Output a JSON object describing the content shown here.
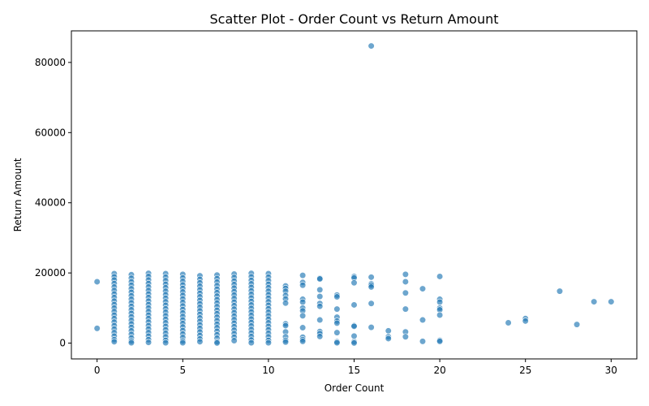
{
  "chart_data": {
    "type": "scatter",
    "title": "Scatter Plot - Order Count vs Return Amount",
    "xlabel": "Order Count",
    "ylabel": "Return Amount",
    "xlim": [
      -1.5,
      31.5
    ],
    "ylim": [
      -4500,
      89000
    ],
    "xticks": [
      0,
      5,
      10,
      15,
      20,
      25,
      30
    ],
    "yticks": [
      0,
      20000,
      40000,
      60000,
      80000
    ],
    "grid": false,
    "legend": "none",
    "marker_color": "#1f77b4",
    "series": [
      {
        "points": [
          [
            0,
            17500
          ],
          [
            0,
            4200
          ],
          [
            1,
            19800
          ],
          [
            1,
            18900
          ],
          [
            1,
            18000
          ],
          [
            1,
            17000
          ],
          [
            1,
            16000
          ],
          [
            1,
            15000
          ],
          [
            1,
            14000
          ],
          [
            1,
            13000
          ],
          [
            1,
            12000
          ],
          [
            1,
            11000
          ],
          [
            1,
            10000
          ],
          [
            1,
            9000
          ],
          [
            1,
            8000
          ],
          [
            1,
            7000
          ],
          [
            1,
            6000
          ],
          [
            1,
            5000
          ],
          [
            1,
            4000
          ],
          [
            1,
            3000
          ],
          [
            1,
            2000
          ],
          [
            1,
            1000
          ],
          [
            1,
            400
          ],
          [
            2,
            19500
          ],
          [
            2,
            18500
          ],
          [
            2,
            17500
          ],
          [
            2,
            16500
          ],
          [
            2,
            15500
          ],
          [
            2,
            14500
          ],
          [
            2,
            13500
          ],
          [
            2,
            12500
          ],
          [
            2,
            11500
          ],
          [
            2,
            10500
          ],
          [
            2,
            9500
          ],
          [
            2,
            8500
          ],
          [
            2,
            7500
          ],
          [
            2,
            6500
          ],
          [
            2,
            5500
          ],
          [
            2,
            4500
          ],
          [
            2,
            3500
          ],
          [
            2,
            2500
          ],
          [
            2,
            1500
          ],
          [
            2,
            600
          ],
          [
            2,
            100
          ],
          [
            3,
            19900
          ],
          [
            3,
            19000
          ],
          [
            3,
            18000
          ],
          [
            3,
            17000
          ],
          [
            3,
            16000
          ],
          [
            3,
            15000
          ],
          [
            3,
            14000
          ],
          [
            3,
            13000
          ],
          [
            3,
            12000
          ],
          [
            3,
            11000
          ],
          [
            3,
            10000
          ],
          [
            3,
            9000
          ],
          [
            3,
            8000
          ],
          [
            3,
            7000
          ],
          [
            3,
            6000
          ],
          [
            3,
            5000
          ],
          [
            3,
            4000
          ],
          [
            3,
            3000
          ],
          [
            3,
            2000
          ],
          [
            3,
            1000
          ],
          [
            3,
            200
          ],
          [
            4,
            19800
          ],
          [
            4,
            18800
          ],
          [
            4,
            17800
          ],
          [
            4,
            16800
          ],
          [
            4,
            15800
          ],
          [
            4,
            14800
          ],
          [
            4,
            13800
          ],
          [
            4,
            12800
          ],
          [
            4,
            11800
          ],
          [
            4,
            10800
          ],
          [
            4,
            9800
          ],
          [
            4,
            8800
          ],
          [
            4,
            7800
          ],
          [
            4,
            6800
          ],
          [
            4,
            5800
          ],
          [
            4,
            4800
          ],
          [
            4,
            3800
          ],
          [
            4,
            2800
          ],
          [
            4,
            1800
          ],
          [
            4,
            800
          ],
          [
            4,
            100
          ],
          [
            5,
            19600
          ],
          [
            5,
            18600
          ],
          [
            5,
            17600
          ],
          [
            5,
            16600
          ],
          [
            5,
            15600
          ],
          [
            5,
            14600
          ],
          [
            5,
            13600
          ],
          [
            5,
            12600
          ],
          [
            5,
            11600
          ],
          [
            5,
            10600
          ],
          [
            5,
            9600
          ],
          [
            5,
            8600
          ],
          [
            5,
            7600
          ],
          [
            5,
            6600
          ],
          [
            5,
            5600
          ],
          [
            5,
            4600
          ],
          [
            5,
            3600
          ],
          [
            5,
            2600
          ],
          [
            5,
            1600
          ],
          [
            5,
            600
          ],
          [
            5,
            100
          ],
          [
            6,
            19200
          ],
          [
            6,
            18200
          ],
          [
            6,
            17200
          ],
          [
            6,
            16200
          ],
          [
            6,
            15200
          ],
          [
            6,
            14200
          ],
          [
            6,
            13200
          ],
          [
            6,
            12200
          ],
          [
            6,
            11200
          ],
          [
            6,
            10200
          ],
          [
            6,
            9200
          ],
          [
            6,
            8200
          ],
          [
            6,
            7200
          ],
          [
            6,
            6200
          ],
          [
            6,
            5200
          ],
          [
            6,
            4200
          ],
          [
            6,
            3200
          ],
          [
            6,
            2200
          ],
          [
            6,
            1200
          ],
          [
            6,
            400
          ],
          [
            7,
            19400
          ],
          [
            7,
            18400
          ],
          [
            7,
            17400
          ],
          [
            7,
            16400
          ],
          [
            7,
            15400
          ],
          [
            7,
            14400
          ],
          [
            7,
            13400
          ],
          [
            7,
            12400
          ],
          [
            7,
            11400
          ],
          [
            7,
            10400
          ],
          [
            7,
            9400
          ],
          [
            7,
            8400
          ],
          [
            7,
            7400
          ],
          [
            7,
            6400
          ],
          [
            7,
            5400
          ],
          [
            7,
            4400
          ],
          [
            7,
            3400
          ],
          [
            7,
            2400
          ],
          [
            7,
            1400
          ],
          [
            7,
            400
          ],
          [
            7,
            50
          ],
          [
            8,
            19700
          ],
          [
            8,
            18700
          ],
          [
            8,
            17700
          ],
          [
            8,
            16700
          ],
          [
            8,
            15700
          ],
          [
            8,
            14700
          ],
          [
            8,
            13700
          ],
          [
            8,
            12700
          ],
          [
            8,
            11700
          ],
          [
            8,
            10700
          ],
          [
            8,
            9700
          ],
          [
            8,
            8700
          ],
          [
            8,
            7700
          ],
          [
            8,
            6700
          ],
          [
            8,
            5700
          ],
          [
            8,
            4700
          ],
          [
            8,
            3700
          ],
          [
            8,
            2700
          ],
          [
            8,
            1700
          ],
          [
            8,
            700
          ],
          [
            9,
            19900
          ],
          [
            9,
            18900
          ],
          [
            9,
            17900
          ],
          [
            9,
            16900
          ],
          [
            9,
            15900
          ],
          [
            9,
            14900
          ],
          [
            9,
            13900
          ],
          [
            9,
            12900
          ],
          [
            9,
            11900
          ],
          [
            9,
            10900
          ],
          [
            9,
            9900
          ],
          [
            9,
            8900
          ],
          [
            9,
            7900
          ],
          [
            9,
            6900
          ],
          [
            9,
            5900
          ],
          [
            9,
            4900
          ],
          [
            9,
            3900
          ],
          [
            9,
            2900
          ],
          [
            9,
            1900
          ],
          [
            9,
            900
          ],
          [
            9,
            100
          ],
          [
            10,
            19800
          ],
          [
            10,
            18800
          ],
          [
            10,
            17800
          ],
          [
            10,
            16800
          ],
          [
            10,
            15800
          ],
          [
            10,
            14800
          ],
          [
            10,
            13800
          ],
          [
            10,
            12800
          ],
          [
            10,
            11800
          ],
          [
            10,
            10800
          ],
          [
            10,
            9800
          ],
          [
            10,
            8800
          ],
          [
            10,
            7800
          ],
          [
            10,
            6800
          ],
          [
            10,
            5800
          ],
          [
            10,
            4800
          ],
          [
            10,
            3800
          ],
          [
            10,
            2800
          ],
          [
            10,
            1800
          ],
          [
            10,
            800
          ],
          [
            10,
            100
          ],
          [
            11,
            16300
          ],
          [
            11,
            15600
          ],
          [
            11,
            14800
          ],
          [
            11,
            13600
          ],
          [
            11,
            12600
          ],
          [
            11,
            11400
          ],
          [
            11,
            5500
          ],
          [
            11,
            5000
          ],
          [
            11,
            3200
          ],
          [
            11,
            1800
          ],
          [
            11,
            800
          ],
          [
            11,
            300
          ],
          [
            12,
            19300
          ],
          [
            12,
            17300
          ],
          [
            12,
            16500
          ],
          [
            12,
            12500
          ],
          [
            12,
            11700
          ],
          [
            12,
            10000
          ],
          [
            12,
            9200
          ],
          [
            12,
            7800
          ],
          [
            12,
            4400
          ],
          [
            12,
            1700
          ],
          [
            12,
            1000
          ],
          [
            12,
            500
          ],
          [
            13,
            18500
          ],
          [
            13,
            18300
          ],
          [
            13,
            15200
          ],
          [
            13,
            13300
          ],
          [
            13,
            11300
          ],
          [
            13,
            10500
          ],
          [
            13,
            6600
          ],
          [
            13,
            3300
          ],
          [
            13,
            2700
          ],
          [
            13,
            1900
          ],
          [
            14,
            13700
          ],
          [
            14,
            13200
          ],
          [
            14,
            9700
          ],
          [
            14,
            7400
          ],
          [
            14,
            6300
          ],
          [
            14,
            5700
          ],
          [
            14,
            3000
          ],
          [
            14,
            400
          ],
          [
            14,
            100
          ],
          [
            15,
            19000
          ],
          [
            15,
            18600
          ],
          [
            15,
            17200
          ],
          [
            15,
            10900
          ],
          [
            15,
            5000
          ],
          [
            15,
            4800
          ],
          [
            15,
            2000
          ],
          [
            15,
            400
          ],
          [
            15,
            50
          ],
          [
            16,
            84700
          ],
          [
            16,
            18800
          ],
          [
            16,
            16900
          ],
          [
            16,
            16500
          ],
          [
            16,
            16000
          ],
          [
            16,
            11300
          ],
          [
            16,
            4500
          ],
          [
            17,
            3500
          ],
          [
            17,
            1800
          ],
          [
            17,
            1300
          ],
          [
            18,
            19600
          ],
          [
            18,
            17500
          ],
          [
            18,
            14300
          ],
          [
            18,
            9700
          ],
          [
            18,
            3200
          ],
          [
            18,
            1800
          ],
          [
            19,
            15500
          ],
          [
            19,
            6600
          ],
          [
            19,
            500
          ],
          [
            20,
            19000
          ],
          [
            20,
            12500
          ],
          [
            20,
            11700
          ],
          [
            20,
            10000
          ],
          [
            20,
            9500
          ],
          [
            20,
            8000
          ],
          [
            20,
            800
          ],
          [
            20,
            500
          ],
          [
            24,
            5800
          ],
          [
            25,
            7000
          ],
          [
            25,
            6300
          ],
          [
            27,
            14800
          ],
          [
            28,
            5300
          ],
          [
            29,
            11800
          ],
          [
            30,
            11800
          ]
        ]
      }
    ]
  }
}
